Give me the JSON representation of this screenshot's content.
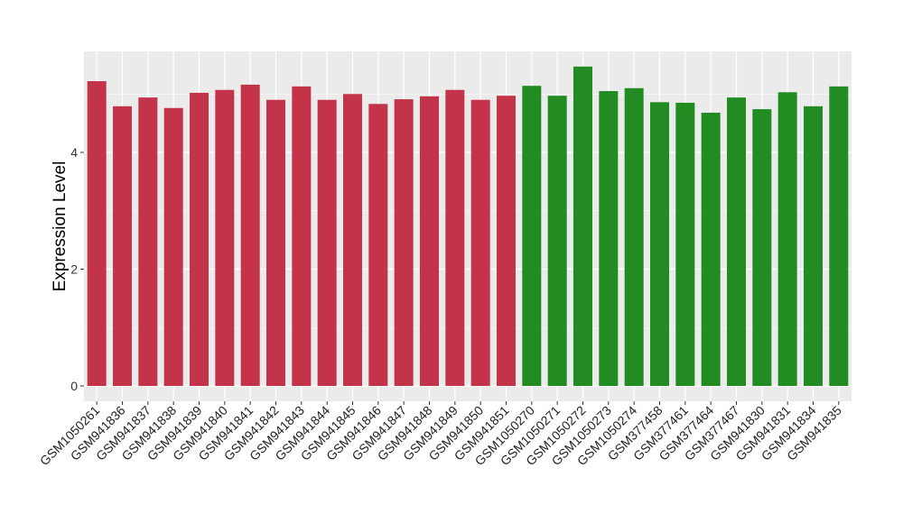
{
  "chart_data": {
    "type": "bar",
    "title": "",
    "xlabel": "",
    "ylabel": "Expression Level",
    "ylim": [
      0,
      5.75
    ],
    "yticks": [
      0,
      2,
      4
    ],
    "grid": true,
    "categories": [
      "GSM1050261",
      "GSM941836",
      "GSM941837",
      "GSM941838",
      "GSM941839",
      "GSM941840",
      "GSM941841",
      "GSM941842",
      "GSM941843",
      "GSM941844",
      "GSM941845",
      "GSM941846",
      "GSM941847",
      "GSM941848",
      "GSM941849",
      "GSM941850",
      "GSM941851",
      "GSM1050270",
      "GSM1050271",
      "GSM1050272",
      "GSM1050273",
      "GSM1050274",
      "GSM377458",
      "GSM377461",
      "GSM377464",
      "GSM377467",
      "GSM941830",
      "GSM941831",
      "GSM941834",
      "GSM941835"
    ],
    "values": [
      5.22,
      4.79,
      4.94,
      4.76,
      5.02,
      5.07,
      5.16,
      4.9,
      5.13,
      4.9,
      5.0,
      4.83,
      4.91,
      4.96,
      5.07,
      4.9,
      4.97,
      5.14,
      4.97,
      5.47,
      5.05,
      5.1,
      4.86,
      4.85,
      4.68,
      4.94,
      4.74,
      5.03,
      4.79,
      5.13
    ],
    "groups": [
      0,
      0,
      0,
      0,
      0,
      0,
      0,
      0,
      0,
      0,
      0,
      0,
      0,
      0,
      0,
      0,
      0,
      1,
      1,
      1,
      1,
      1,
      1,
      1,
      1,
      1,
      1,
      1,
      1,
      1
    ],
    "group_colors": [
      "#C3344A",
      "#228B22"
    ]
  }
}
